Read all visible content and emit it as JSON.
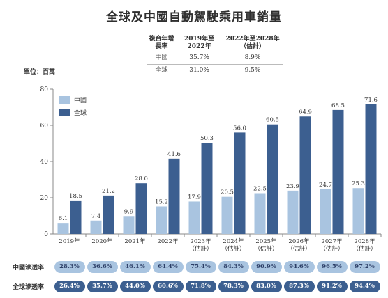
{
  "title": "全球及中國自動駕駛乘用車銷量",
  "cagr_table": {
    "headers": [
      "複合年增長率",
      "2019年至2022年",
      "2022年至2028年（估計）"
    ],
    "rows": [
      {
        "label": "中國",
        "v1": "35.7%",
        "v2": "8.9%"
      },
      {
        "label": "全球",
        "v1": "31.0%",
        "v2": "9.5%"
      }
    ]
  },
  "unit": "單位：百萬",
  "chart_data": {
    "type": "bar",
    "categories": [
      "2019年",
      "2020年",
      "2021年",
      "2022年",
      "2023年（估計）",
      "2024年（估計）",
      "2025年（估計）",
      "2026年（估計）",
      "2027年（估計）",
      "2028年（估計）"
    ],
    "category_lines": [
      [
        "2019年"
      ],
      [
        "2020年"
      ],
      [
        "2021年"
      ],
      [
        "2022年"
      ],
      [
        "2023年",
        "（估計）"
      ],
      [
        "2024年",
        "（估計）"
      ],
      [
        "2025年",
        "（估計）"
      ],
      [
        "2026年",
        "（估計）"
      ],
      [
        "2027年",
        "（估計）"
      ],
      [
        "2028年",
        "（估計）"
      ]
    ],
    "series": [
      {
        "name": "中國",
        "color": "#a9c4e0",
        "values": [
          6.1,
          7.4,
          9.9,
          15.2,
          17.9,
          20.5,
          22.5,
          23.9,
          24.7,
          25.3
        ]
      },
      {
        "name": "全球",
        "color": "#3c5f90",
        "values": [
          18.5,
          21.2,
          28.0,
          41.6,
          50.3,
          56.0,
          60.5,
          64.9,
          68.5,
          71.6
        ]
      }
    ],
    "value_labels": [
      [
        "6.1",
        "7.4",
        "9.9",
        "15.2",
        "17.9",
        "20.5",
        "22.5",
        "23.9",
        "24.7",
        "25.3"
      ],
      [
        "18.5",
        "21.2",
        "28.0",
        "41.6",
        "50.3",
        "56.0",
        "60.5",
        "64.9",
        "68.5",
        "71.6"
      ]
    ],
    "y_ticks": [
      0,
      20,
      40,
      60,
      80
    ],
    "ylim": [
      0,
      80
    ],
    "legend_position": "top-left",
    "grid": false
  },
  "penetration": {
    "china_label": "中國滲透率",
    "global_label": "全球滲透率",
    "china": [
      "28.3%",
      "36.6%",
      "46.1%",
      "64.4%",
      "75.4%",
      "84.3%",
      "90.9%",
      "94.6%",
      "96.5%",
      "97.2%"
    ],
    "global": [
      "26.4%",
      "35.7%",
      "44.0%",
      "60.6%",
      "71.8%",
      "78.3%",
      "83.0%",
      "87.3%",
      "91.2%",
      "94.4%"
    ]
  }
}
